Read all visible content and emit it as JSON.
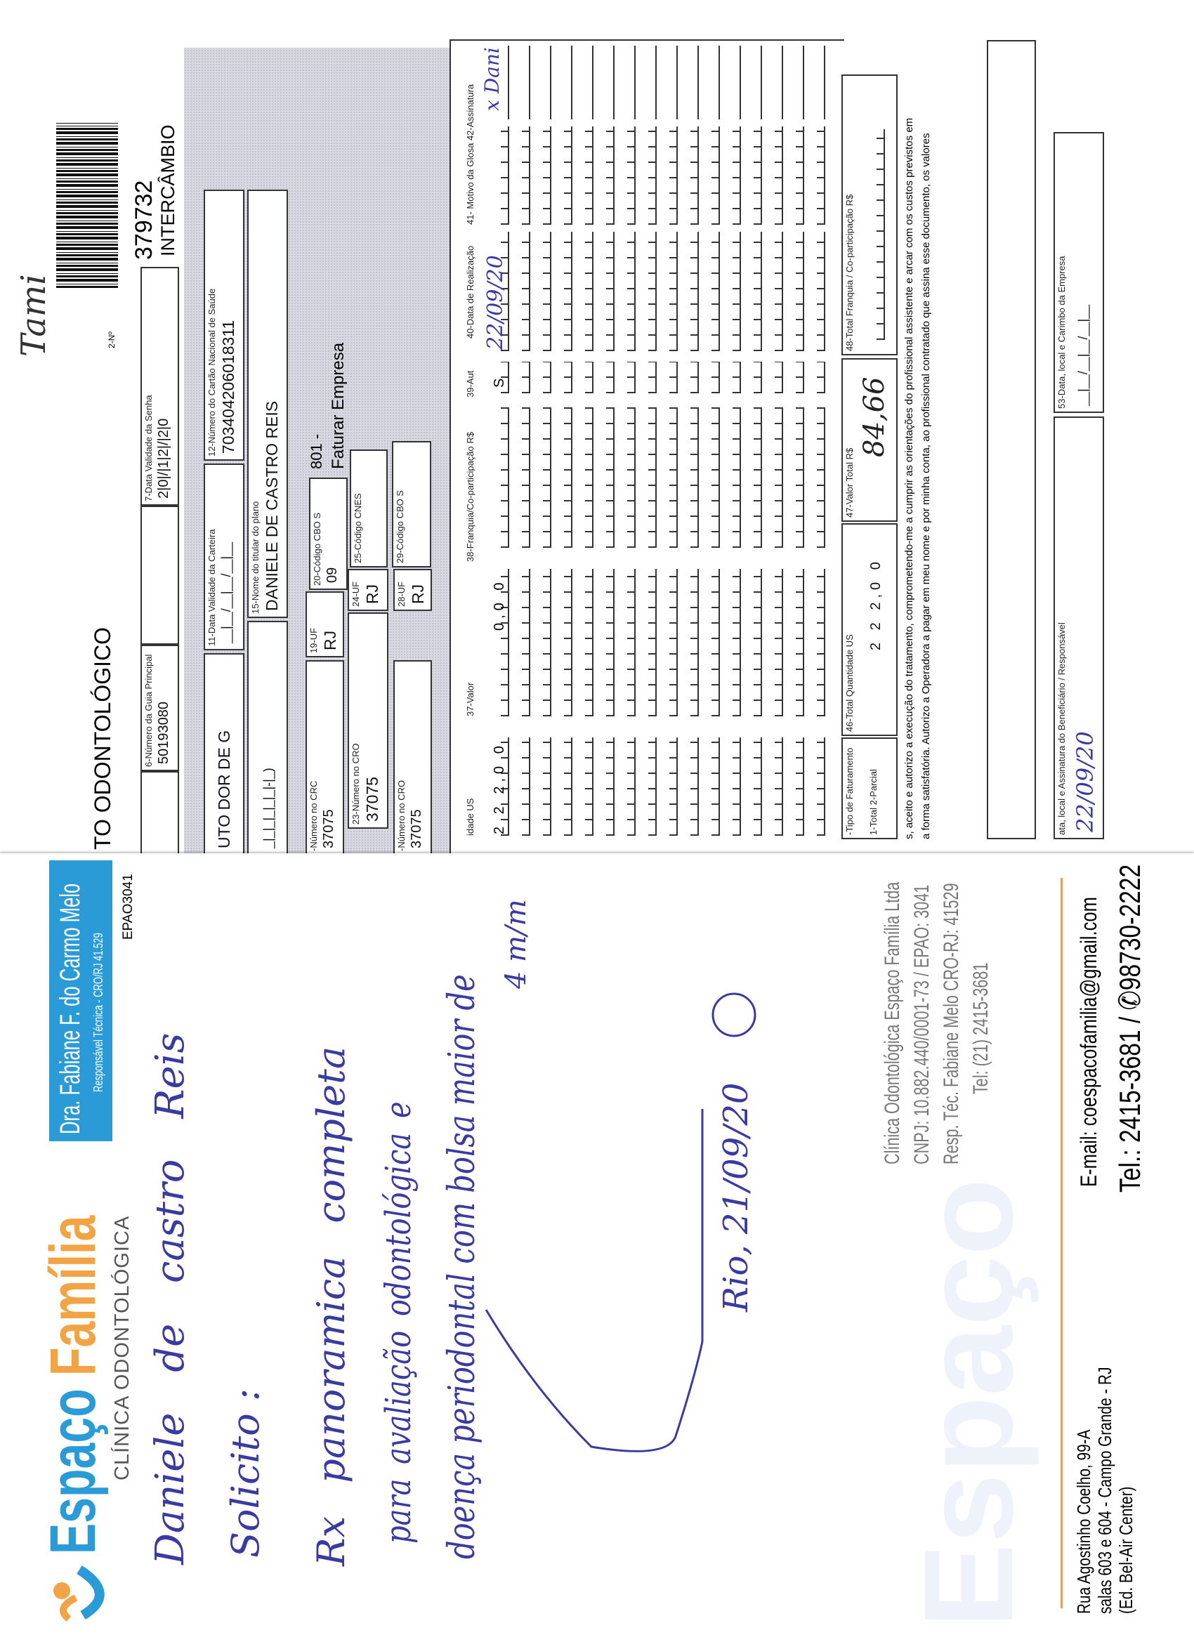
{
  "letterhead": {
    "brand_part1": "Espaço",
    "brand_part2": "Família",
    "subtitle": "CLÍNICA ODONTOLÓGICA",
    "doctor_name": "Dra. Fabiane F. do Carmo Melo",
    "doctor_role": "Responsável Técnica - CRO/RJ 41.529",
    "epao": "EPAO3041",
    "colors": {
      "blue": "#2b9bd8",
      "orange": "#f2a444",
      "ink": "#3a3aa0"
    },
    "handwriting": {
      "patient": "Daniele de castro Reis",
      "request_title": "Solicito :",
      "line1": "Rx panoramica completa",
      "line2": "para   avaliação   odontológica e",
      "line3": "doença periodontal com bolsa maior de",
      "line4": "4 m/m",
      "date": "Rio, 21/09/20"
    },
    "stamp": [
      "Clínica Odontológica Espaço Família Ltda",
      "CNPJ: 10.882.440/0001-73 / EPAO: 3041",
      "Resp. Téc. Fabiane Melo CRO-RJ: 41529",
      "Tel: (21) 2415-3681"
    ],
    "address": [
      "Rua Agostinho Coelho, 99-A",
      "salas 603 e 604 - Campo Grande - RJ",
      "(Ed. Bel-Air Center)"
    ],
    "email": "E-mail: coespacofamilia@gmail.com",
    "phone": "Tel.: 2415-3681 / ",
    "whatsapp": "98730-2222",
    "watermark": "Espaço"
  },
  "form": {
    "title": "TO ODONTOLÓGICO",
    "number_label": "2-Nº",
    "number": "379732",
    "type": "INTERCÂMBIO",
    "handwritten_note": "Tami",
    "fields": {
      "guia_label": "6-Número da Guia Principal",
      "guia_value": "50193080",
      "senha_label": "7-Data Validade da Senha",
      "senha_value": "2|0|/|1|2|/|2|0",
      "plano_value": "UTO DOR DE G",
      "carteira_label": "11-Data Validade da Carteira",
      "carteira_value": "__|__/__|__/__|__",
      "cns_label": "12-Número do Cartão Nacional de Saúde",
      "cns_value": "703404206018311",
      "phone_value": "_|_|_|_|_|_|-|_)",
      "titular_label": "15-Nome do titular do plano",
      "titular_value": "DANIELE DE CASTRO REIS",
      "crc_label": "-Número no CRC",
      "crc_value": "37075",
      "uf19_label": "19-UF",
      "uf19_value": "RJ",
      "cbo20_label": "20-Código CBO S",
      "cbo20_value": "09",
      "billing_code": "801 -",
      "billing_text": "Faturar Empresa",
      "cro23_label": "23-Número no CRO",
      "cro23_value": "37075",
      "uf24_label": "24-UF",
      "uf24_value": "RJ",
      "cnes_label": "25-Código CNES",
      "cro27_label": "-Número no CRO",
      "cro27_value": "37075",
      "uf28_label": "28-UF",
      "uf28_value": "RJ",
      "cbo29_label": "29-Código CBO S"
    },
    "table": {
      "headers": [
        "idade US",
        "37-Valor",
        "38-Franquia/Co-participação R$",
        "39-Aut",
        "40-Data de Realização",
        "41- Motivo da Glosa 42-Assinatura"
      ],
      "first_row": {
        "quantity": "2 2 2,0 0",
        "value": "0,0 0",
        "aut": "S",
        "date": "22/09/20",
        "signature": "x Dani"
      }
    },
    "totals": {
      "tipo_label": "-Tipo de Faturamento",
      "tipo_options": "1-Total 2-Parcial",
      "qty_label": "46-Total Quantidade US",
      "qty_value": "2 2 2,0 0",
      "valor_label": "47-Valor Total R$",
      "valor_value": "84,66",
      "franquia_label": "48-Total Franquia / Co-participação R$"
    },
    "consent": [
      "s, aceito e autorizo a execução do tratamento, comprometendo-me a cumprir as orientações do profissional assistente e arcar com os custos previstos em",
      "a forma satisfatória. Autorizo a Operadora a pagar em meu nome e por minha conta, ao profissional contratado que assina esse documento, os valores"
    ],
    "signature_label": "ata, local e Assinatura do Beneficiário / Responsável",
    "signature_date": "22/09/20",
    "company_label": "53-Data, local e Carimbo da Empresa",
    "company_value": "__|__/__|__/__|__"
  }
}
